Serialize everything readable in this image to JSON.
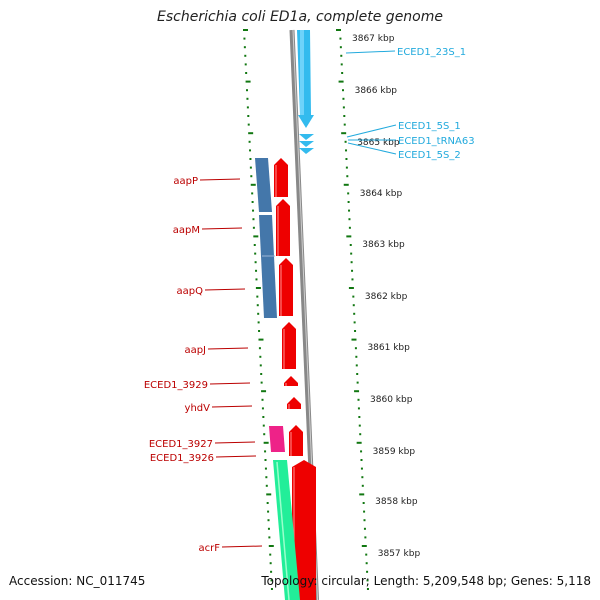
{
  "title": "Escherichia coli ED1a, complete genome",
  "footer": {
    "accession": "Accession: NC_011745",
    "topology": "Topology: circular; Length: 5,209,548 bp; Genes: 5,118"
  },
  "colors": {
    "tick": "#117711",
    "backbone": "#808080",
    "rna": "#33bbee",
    "rna_label": "#22aadd",
    "gene": "#ee0000",
    "gene_label": "#bb0000",
    "operon": "#4477aa",
    "pink": "#ee2288",
    "aqua": "#22ee99"
  },
  "scale_labels": [
    {
      "text": "3867 kbp",
      "kbp": 3867
    },
    {
      "text": "3866 kbp",
      "kbp": 3866
    },
    {
      "text": "3865 kbp",
      "kbp": 3865
    },
    {
      "text": "3864 kbp",
      "kbp": 3864
    },
    {
      "text": "3863 kbp",
      "kbp": 3863
    },
    {
      "text": "3862 kbp",
      "kbp": 3862
    },
    {
      "text": "3861 kbp",
      "kbp": 3861
    },
    {
      "text": "3860 kbp",
      "kbp": 3860
    },
    {
      "text": "3859 kbp",
      "kbp": 3859
    },
    {
      "text": "3858 kbp",
      "kbp": 3858
    },
    {
      "text": "3857 kbp",
      "kbp": 3857
    }
  ],
  "rna_labels": [
    {
      "text": "ECED1_23S_1"
    },
    {
      "text": "ECED1_5S_1"
    },
    {
      "text": "ECED1_tRNA63"
    },
    {
      "text": "ECED1_5S_2"
    }
  ],
  "gene_labels": [
    {
      "text": "aapP"
    },
    {
      "text": "aapM"
    },
    {
      "text": "aapQ"
    },
    {
      "text": "aapJ"
    },
    {
      "text": "ECED1_3929"
    },
    {
      "text": "yhdV"
    },
    {
      "text": "ECED1_3927"
    },
    {
      "text": "ECED1_3926"
    },
    {
      "text": "acrF"
    }
  ]
}
